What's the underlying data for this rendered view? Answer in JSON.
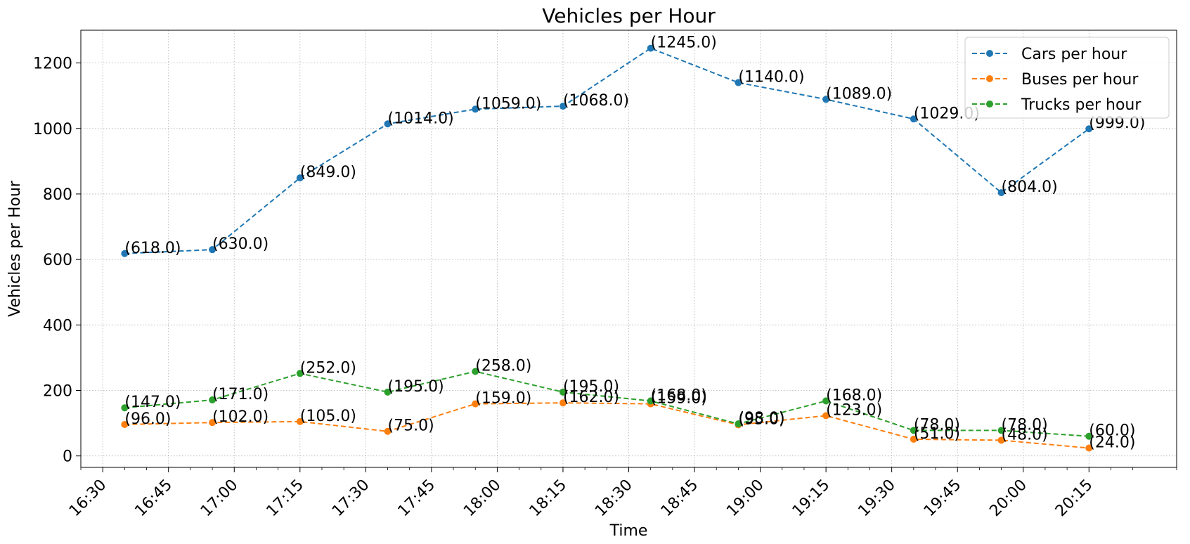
{
  "chart_data": {
    "type": "line",
    "title": "Vehicles per Hour",
    "xlabel": "Time",
    "ylabel": "Vehicles per Hour",
    "x": [
      "16:35",
      "16:55",
      "17:15",
      "17:35",
      "17:55",
      "18:15",
      "18:35",
      "18:55",
      "19:15",
      "19:35",
      "19:55",
      "20:15"
    ],
    "xlim": [
      "16:25",
      "20:35"
    ],
    "x_ticks": [
      "16:30",
      "16:45",
      "17:00",
      "17:15",
      "17:30",
      "17:45",
      "18:00",
      "18:15",
      "18:30",
      "18:45",
      "19:00",
      "19:15",
      "19:30",
      "19:45",
      "20:00",
      "20:15"
    ],
    "ylim": [
      -35,
      1300
    ],
    "y_ticks": [
      0,
      200,
      400,
      600,
      800,
      1000,
      1200
    ],
    "grid": true,
    "legend_position": "top-right",
    "series": [
      {
        "name": "Cars per hour",
        "color": "#1f77b4",
        "values": [
          618,
          630,
          849,
          1014,
          1059,
          1068,
          1245,
          1140,
          1089,
          1029,
          804,
          999
        ],
        "labels": [
          "(618.0)",
          "(630.0)",
          "(849.0)",
          "(1014.0)",
          "(1059.0)",
          "(1068.0)",
          "(1245.0)",
          "(1140.0)",
          "(1089.0)",
          "(1029.0)",
          "(804.0)",
          "(999.0)"
        ]
      },
      {
        "name": "Buses per hour",
        "color": "#ff7f0e",
        "values": [
          96,
          102,
          105,
          75,
          159,
          162,
          159,
          95,
          123,
          51,
          48,
          24
        ],
        "labels": [
          "(96.0)",
          "(102.0)",
          "(105.0)",
          "(75.0)",
          "(159.0)",
          "(162.0)",
          "(159.0)",
          "(95.0)",
          "(123.0)",
          "(51.0)",
          "(48.0)",
          "(24.0)"
        ]
      },
      {
        "name": "Trucks per hour",
        "color": "#2ca02c",
        "values": [
          147,
          171,
          252,
          195,
          258,
          195,
          168,
          98,
          168,
          78,
          78,
          60
        ],
        "labels": [
          "(147.0)",
          "(171.0)",
          "(252.0)",
          "(195.0)",
          "(258.0)",
          "(195.0)",
          "(168.0)",
          "(98.0)",
          "(168.0)",
          "(78.0)",
          "(78.0)",
          "(60.0)"
        ]
      }
    ]
  }
}
